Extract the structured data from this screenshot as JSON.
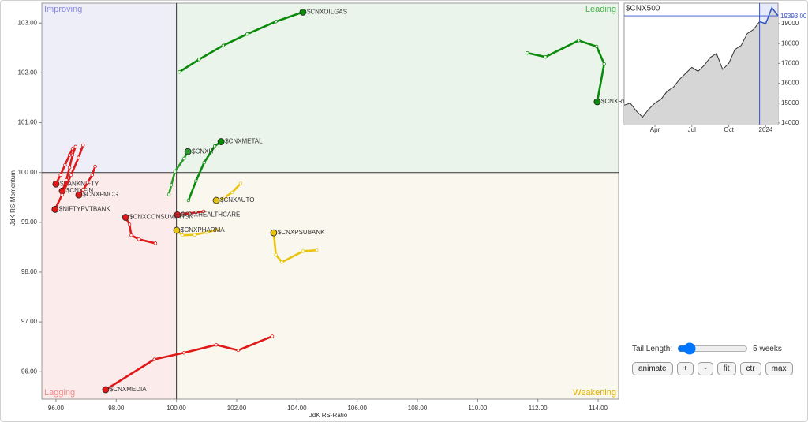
{
  "chart_data": [
    {
      "type": "rrg",
      "x_label": "JdK RS-Ratio",
      "y_label": "JdK RS-Momentum",
      "xlim": [
        95.53,
        114.68
      ],
      "ylim": [
        95.45,
        103.4
      ],
      "center": [
        100,
        100
      ],
      "xticks": [
        {
          "value": 96,
          "label": "96.00"
        },
        {
          "value": 98,
          "label": "98.00"
        },
        {
          "value": 100,
          "label": "100.00"
        },
        {
          "value": 102,
          "label": "102.00"
        },
        {
          "value": 104,
          "label": "104.00"
        },
        {
          "value": 106,
          "label": "106.00"
        },
        {
          "value": 108,
          "label": "108.00"
        },
        {
          "value": 110,
          "label": "110.00"
        },
        {
          "value": 112,
          "label": "112.00"
        },
        {
          "value": 114,
          "label": "114.00"
        }
      ],
      "yticks": [
        {
          "value": 96,
          "label": "96.00"
        },
        {
          "value": 97,
          "label": "97.00"
        },
        {
          "value": 98,
          "label": "98.00"
        },
        {
          "value": 99,
          "label": "99.00"
        },
        {
          "value": 100,
          "label": "100.00"
        },
        {
          "value": 101,
          "label": "101.00"
        },
        {
          "value": 102,
          "label": "102.00"
        },
        {
          "value": 103,
          "label": "103.00"
        }
      ],
      "quadrants": [
        {
          "name": "Improving",
          "color": "#8888dd",
          "fill": "#eeeef8"
        },
        {
          "name": "Leading",
          "color": "#4caf50",
          "fill": "#eaf4ea"
        },
        {
          "name": "Lagging",
          "color": "#f08a8a",
          "fill": "#fbebeb"
        },
        {
          "name": "Weakening",
          "color": "#e0b000",
          "fill": "#faf7ee"
        }
      ],
      "series": [
        {
          "name": "$CNXOILGAS",
          "color": "#0a8a0a",
          "x": [
            100.1,
            100.75,
            101.55,
            102.35,
            103.3,
            104.2
          ],
          "y": [
            102.02,
            102.27,
            102.55,
            102.78,
            103.03,
            103.22
          ]
        },
        {
          "name": "$CNXREALTY",
          "color": "#0a8a0a",
          "x": [
            111.65,
            112.25,
            113.35,
            113.95,
            114.2,
            113.97
          ],
          "y": [
            102.4,
            102.32,
            102.65,
            102.53,
            102.18,
            101.42
          ]
        },
        {
          "name": "$CNXMETAL",
          "color": "#0a8a0a",
          "x": [
            100.4,
            100.65,
            100.92,
            101.27,
            101.48
          ],
          "y": [
            99.44,
            99.83,
            100.2,
            100.53,
            100.62
          ]
        },
        {
          "name": "$CNXIT",
          "color": "#2a9a2a",
          "x": [
            99.75,
            99.83,
            99.95,
            100.25,
            100.38
          ],
          "y": [
            99.56,
            99.75,
            100.02,
            100.28,
            100.42
          ]
        },
        {
          "name": "$CNXAUTO",
          "color": "#e8c410",
          "x": [
            102.13,
            101.85,
            101.6,
            101.45,
            101.32
          ],
          "y": [
            99.78,
            99.6,
            99.5,
            99.45,
            99.44
          ]
        },
        {
          "name": "$CNXHEALTHCARE",
          "color": "#e01818",
          "x": [
            100.9,
            100.65,
            100.45,
            100.2,
            100.03
          ],
          "y": [
            99.22,
            99.2,
            99.18,
            99.17,
            99.15
          ]
        },
        {
          "name": "$CNXPHARMA",
          "color": "#e8c410",
          "x": [
            101.4,
            101.0,
            100.6,
            100.2,
            100.01
          ],
          "y": [
            98.86,
            98.8,
            98.75,
            98.74,
            98.84
          ]
        },
        {
          "name": "$CNXPSUBANK",
          "color": "#e8c410",
          "x": [
            104.65,
            104.2,
            103.5,
            103.3,
            103.23
          ],
          "y": [
            98.44,
            98.42,
            98.2,
            98.35,
            98.79
          ]
        },
        {
          "name": "$CNXCONSUMPTION",
          "color": "#e01818",
          "x": [
            99.3,
            98.75,
            98.5,
            98.44,
            98.31
          ],
          "y": [
            98.58,
            98.66,
            98.74,
            98.96,
            99.1
          ]
        },
        {
          "name": "$CNXMEDIA",
          "color": "#e01818",
          "x": [
            103.18,
            102.05,
            101.32,
            100.25,
            99.27,
            97.65
          ],
          "y": [
            96.71,
            96.43,
            96.54,
            96.38,
            96.25,
            95.64
          ]
        },
        {
          "name": "$BANKNIFTY",
          "color": "#e01818",
          "x": [
            96.55,
            96.45,
            96.3,
            96.15,
            96.0
          ],
          "y": [
            100.48,
            100.35,
            100.15,
            99.95,
            99.77
          ]
        },
        {
          "name": "$CNXFIN",
          "color": "#e01818",
          "x": [
            96.65,
            96.55,
            96.45,
            96.35,
            96.21
          ],
          "y": [
            100.52,
            100.35,
            100.1,
            99.85,
            99.63
          ]
        },
        {
          "name": "$CNXFMCG",
          "color": "#e01818",
          "x": [
            97.3,
            97.2,
            97.05,
            96.9,
            96.76
          ],
          "y": [
            100.12,
            99.95,
            99.8,
            99.65,
            99.55
          ]
        },
        {
          "name": "$NIFTYPVTBANK",
          "color": "#e01818",
          "x": [
            96.9,
            96.75,
            96.5,
            96.2,
            95.97
          ],
          "y": [
            100.55,
            100.3,
            99.95,
            99.55,
            99.26
          ]
        }
      ]
    },
    {
      "type": "line",
      "title": "$CNX500",
      "color": "#333333",
      "highlight": "#3355cc",
      "categories": [
        null,
        null,
        null,
        null,
        null,
        "Apr",
        null,
        null,
        null,
        null,
        null,
        "Jul",
        null,
        null,
        null,
        null,
        null,
        "Oct",
        null,
        null,
        null,
        null,
        null,
        "2024",
        null,
        null
      ],
      "values": [
        14900,
        15000,
        14600,
        14300,
        14700,
        15000,
        15200,
        15600,
        15800,
        16200,
        16500,
        16800,
        16600,
        16900,
        17300,
        17500,
        16700,
        17000,
        17700,
        17900,
        18500,
        18700,
        19100,
        19000,
        19800,
        19393
      ],
      "value_labels": [
        null,
        null,
        null,
        null,
        null,
        null,
        null,
        null,
        null,
        null,
        null,
        null,
        null,
        null,
        null,
        null,
        null,
        null,
        null,
        null,
        null,
        null,
        null,
        null,
        null,
        "19393.00"
      ],
      "ylim": [
        13920,
        20030
      ],
      "yticks": [
        14000,
        15000,
        16000,
        17000,
        18000,
        19000
      ]
    }
  ],
  "controls": {
    "tail_label": "Tail Length:",
    "tail_value": "5 weeks",
    "buttons": [
      "animate",
      "+",
      "-",
      "fit",
      "ctr",
      "max"
    ]
  }
}
